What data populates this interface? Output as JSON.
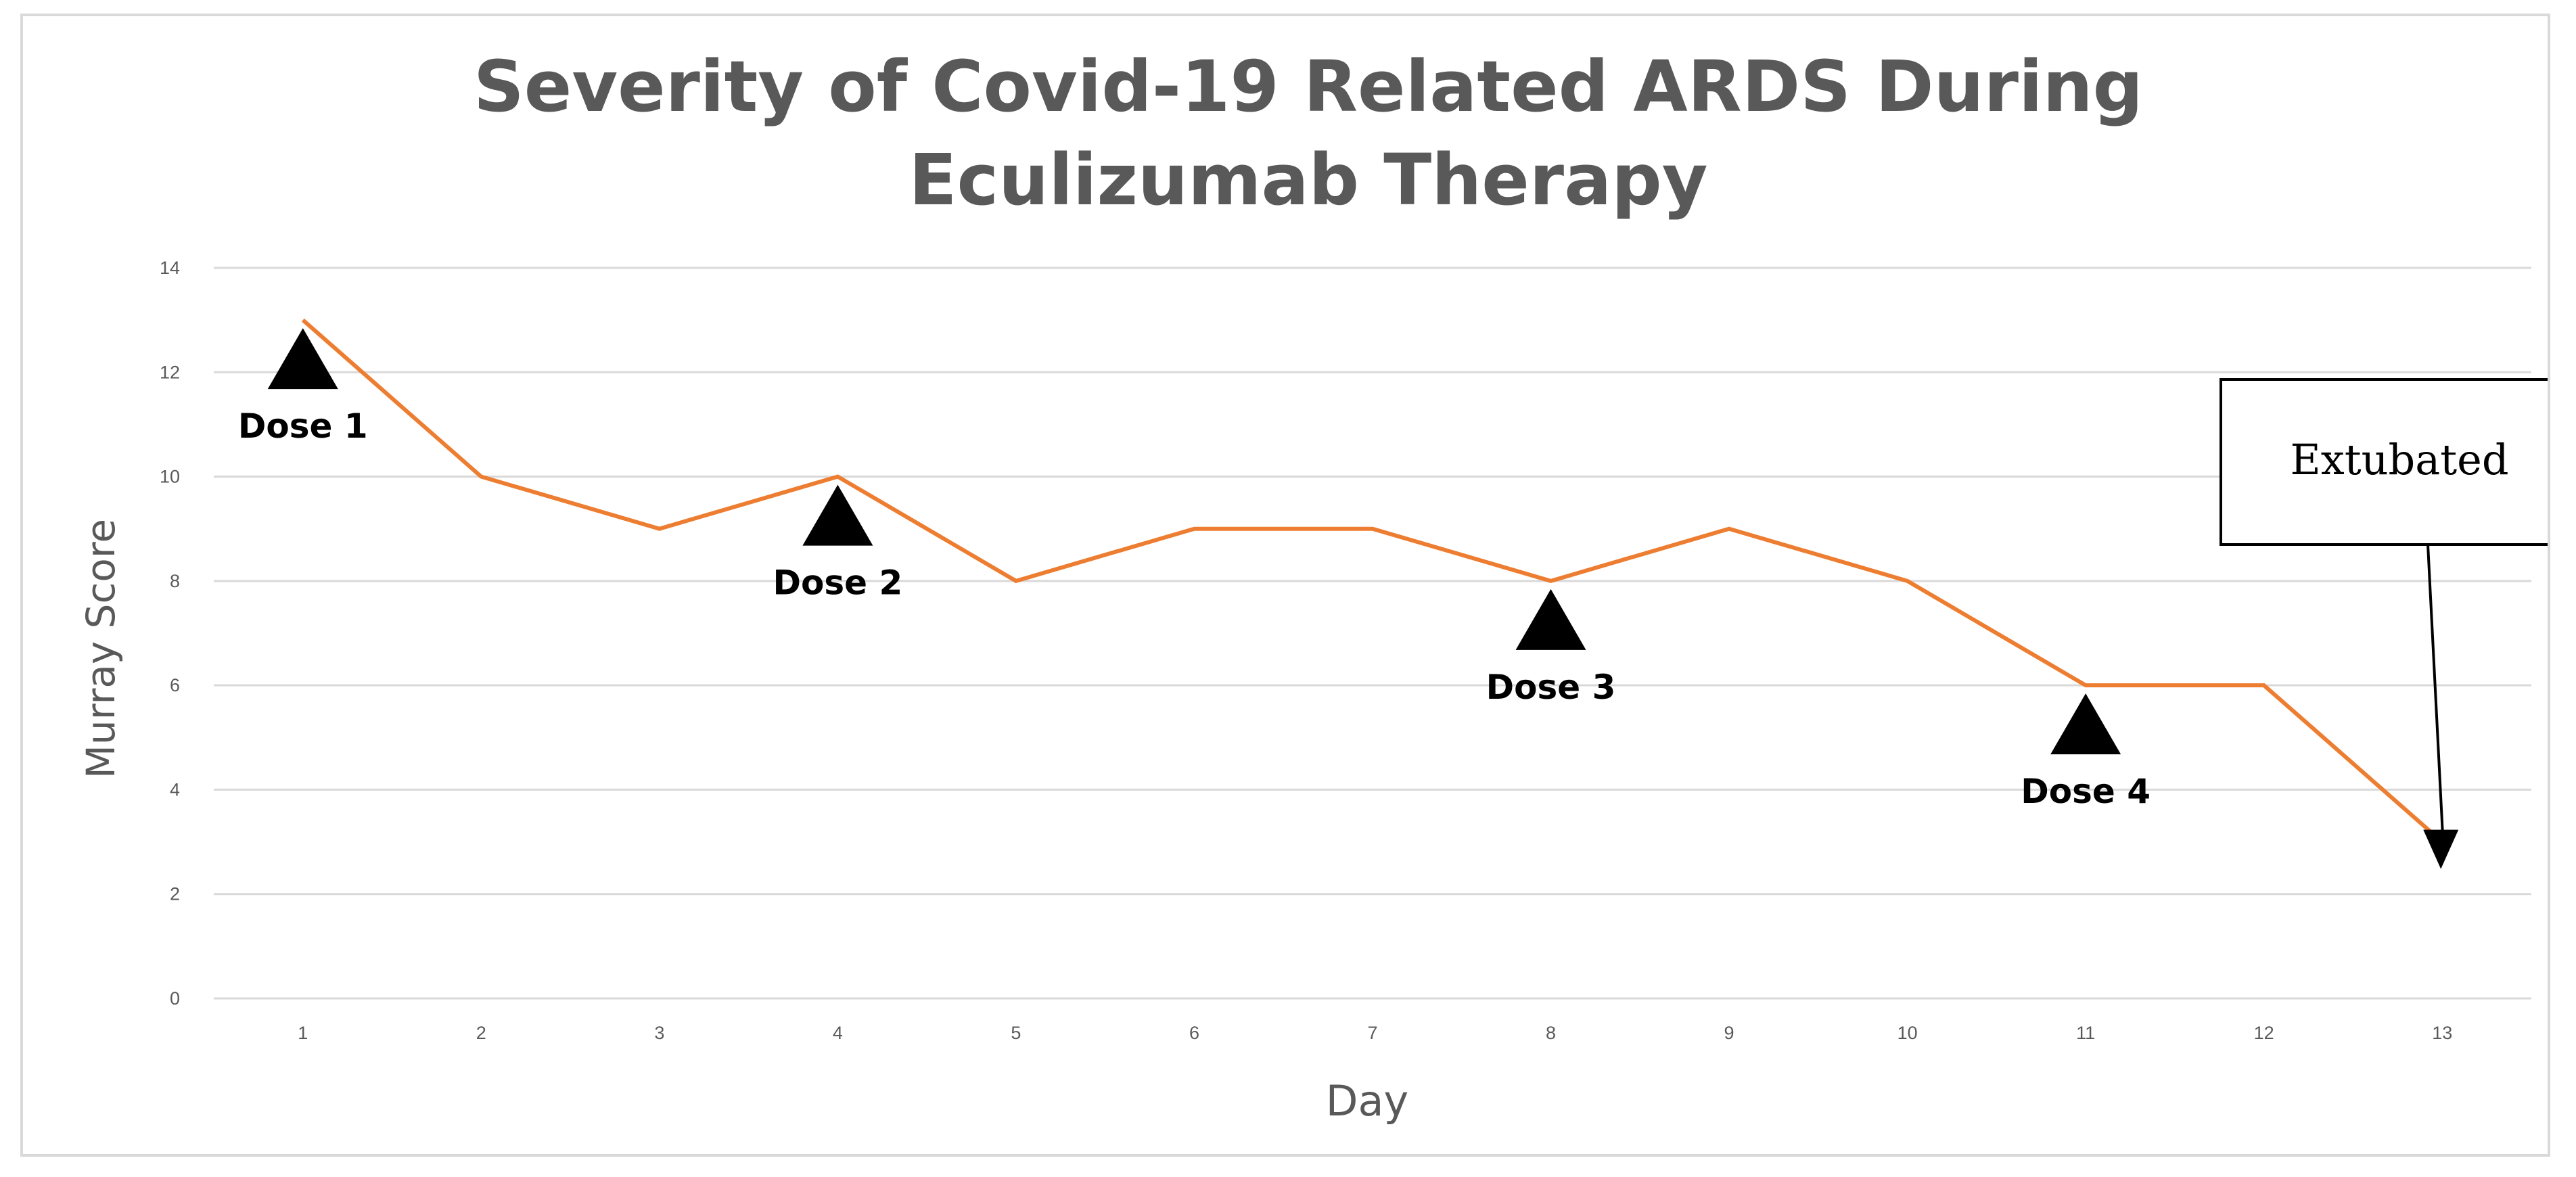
{
  "chart_data": {
    "type": "line",
    "title": "Severity of Covid-19 Related ARDS During Eculizumab Therapy",
    "title_lines": [
      "Severity of Covid-19 Related ARDS During",
      "Eculizumab Therapy"
    ],
    "xlabel": "Day",
    "ylabel": "Murray Score",
    "categories": [
      "1",
      "2",
      "3",
      "4",
      "5",
      "6",
      "7",
      "8",
      "9",
      "10",
      "11",
      "12",
      "13"
    ],
    "yticks": [
      "0",
      "2",
      "4",
      "6",
      "8",
      "10",
      "12",
      "14"
    ],
    "ylim": [
      0,
      14
    ],
    "grid": true,
    "series": [
      {
        "values": [
          13,
          10,
          9,
          10,
          8,
          9,
          9,
          8,
          9,
          8,
          6,
          6,
          3
        ],
        "color": "#ED7D31"
      }
    ],
    "annotations": [
      {
        "label": "Dose 1",
        "day": 1,
        "marker": "triangle"
      },
      {
        "label": "Dose 2",
        "day": 4,
        "marker": "triangle"
      },
      {
        "label": "Dose 3",
        "day": 8,
        "marker": "triangle"
      },
      {
        "label": "Dose 4",
        "day": 11,
        "marker": "triangle"
      }
    ],
    "callout": {
      "label": "Extubated",
      "day": 13,
      "value": 3,
      "marker": "arrow"
    }
  },
  "colors": {
    "line": "#ED7D31",
    "grid": "#d9d9d9",
    "text": "#595959",
    "marker": "#000000"
  }
}
